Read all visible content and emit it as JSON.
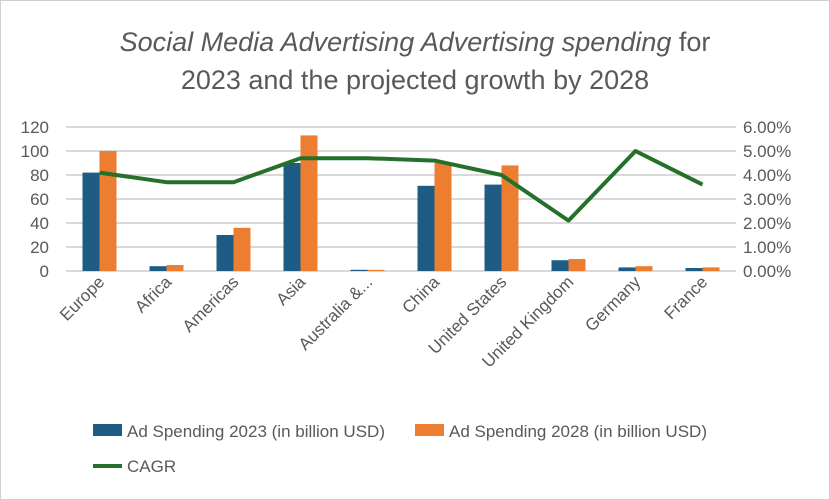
{
  "chart_data": {
    "type": "bar",
    "title_italic": "Social Media Advertising Advertising spending",
    "title_rest": " for",
    "title_line2": "2023 and the projected growth by 2028",
    "categories": [
      "Europe",
      "Africa",
      "Americas",
      "Asia",
      "Australia &...",
      "China",
      "United States",
      "United Kingdom",
      "Germany",
      "France"
    ],
    "series": [
      {
        "name": "Ad Spending 2023 (in billion USD)",
        "type": "bar",
        "axis": "left",
        "color": "#1f5c85",
        "values": [
          82,
          4,
          30,
          90,
          1,
          71,
          72,
          9,
          3,
          2.5
        ]
      },
      {
        "name": "Ad Spending 2028 (in billion USD)",
        "type": "bar",
        "axis": "left",
        "color": "#ed7d31",
        "values": [
          100,
          5,
          36,
          113,
          1,
          90,
          88,
          10,
          4,
          3
        ]
      },
      {
        "name": "CAGR",
        "type": "line",
        "axis": "right",
        "color": "#25702a",
        "values": [
          4.1,
          3.7,
          3.7,
          4.7,
          4.7,
          4.6,
          4.0,
          2.1,
          5.0,
          3.6
        ]
      }
    ],
    "ylim": [
      0,
      120
    ],
    "yticks": [
      "0",
      "20",
      "40",
      "60",
      "80",
      "100",
      "120"
    ],
    "y2lim": [
      0,
      6
    ],
    "y2ticks": [
      "0.00%",
      "1.00%",
      "2.00%",
      "3.00%",
      "4.00%",
      "5.00%",
      "6.00%"
    ],
    "grid": true,
    "legend_placement": "bottom"
  }
}
